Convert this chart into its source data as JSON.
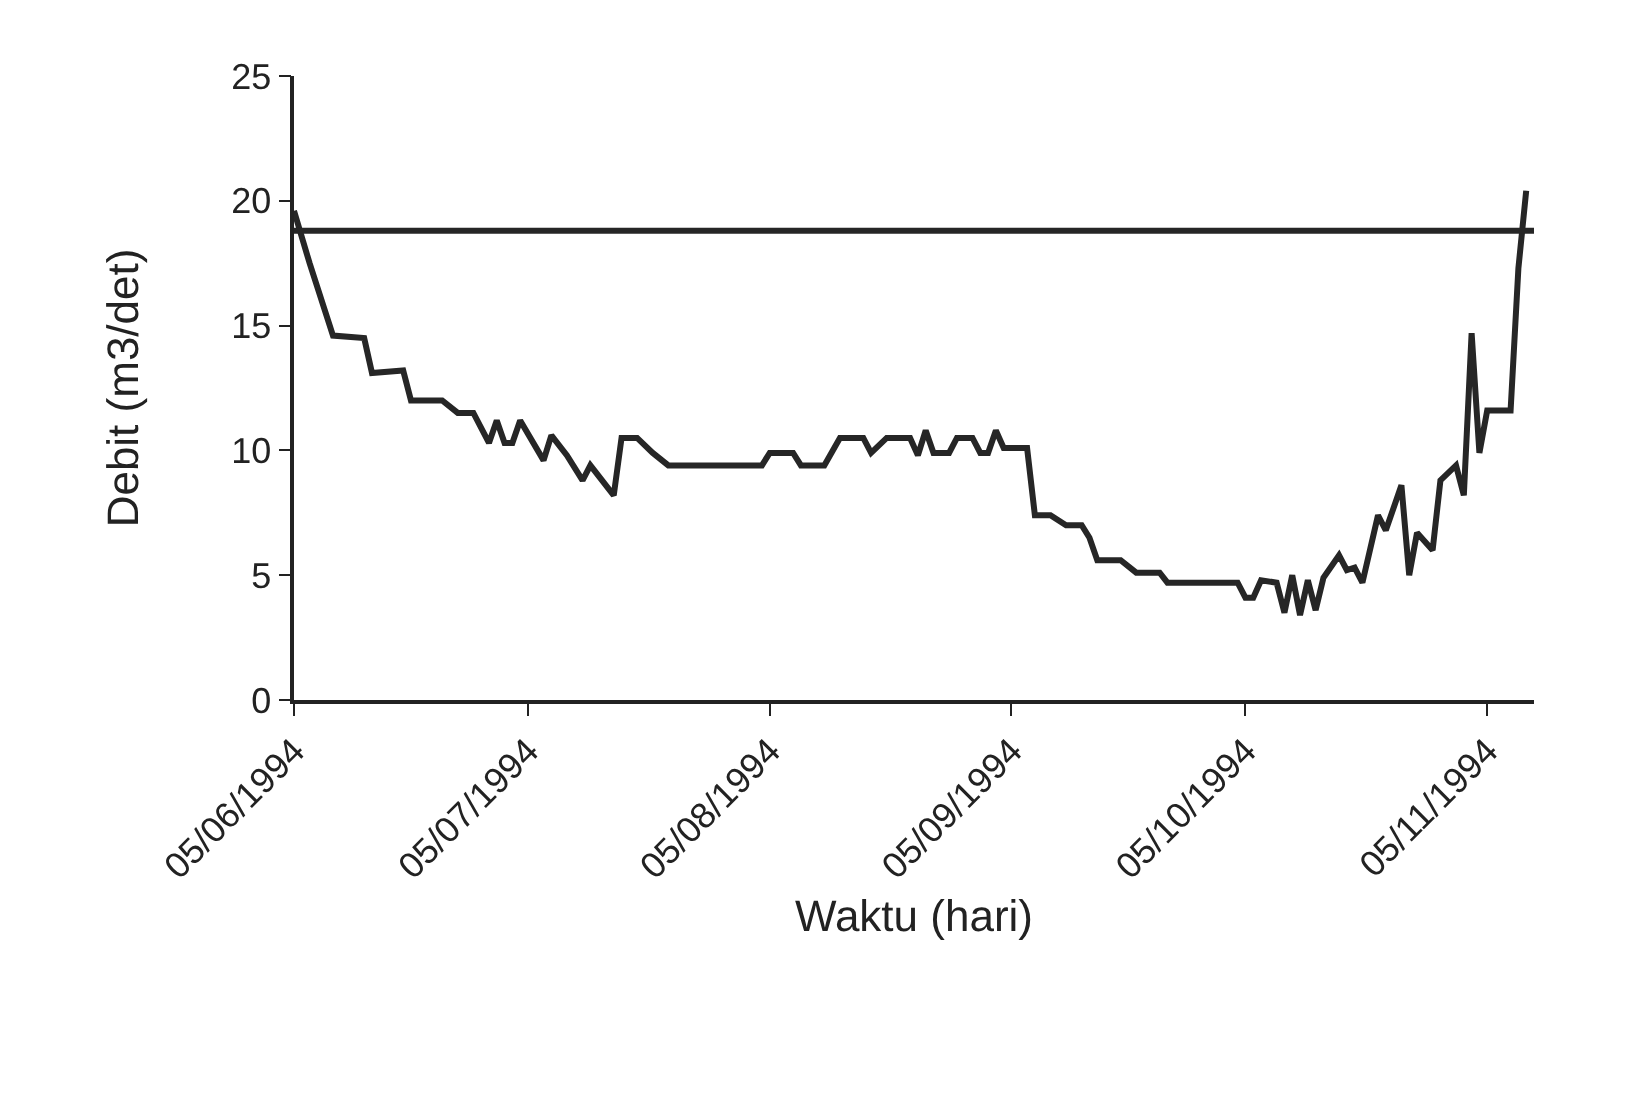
{
  "chart_data": {
    "type": "line",
    "xlabel": "Waktu (hari)",
    "ylabel": "Debit (m3/det)",
    "x": [
      "1994-06-05",
      "1994-06-07",
      "1994-06-10",
      "1994-06-14",
      "1994-06-15",
      "1994-06-19",
      "1994-06-20",
      "1994-06-24",
      "1994-06-26",
      "1994-06-28",
      "1994-06-30",
      "1994-07-01",
      "1994-07-02",
      "1994-07-03",
      "1994-07-04",
      "1994-07-07",
      "1994-07-08",
      "1994-07-10",
      "1994-07-12",
      "1994-07-13",
      "1994-07-16",
      "1994-07-17",
      "1994-07-19",
      "1994-07-21",
      "1994-07-23",
      "1994-08-04",
      "1994-08-05",
      "1994-08-08",
      "1994-08-09",
      "1994-08-12",
      "1994-08-14",
      "1994-08-17",
      "1994-08-18",
      "1994-08-20",
      "1994-08-23",
      "1994-08-24",
      "1994-08-25",
      "1994-08-26",
      "1994-08-28",
      "1994-08-29",
      "1994-08-31",
      "1994-09-01",
      "1994-09-02",
      "1994-09-03",
      "1994-09-04",
      "1994-09-07",
      "1994-09-08",
      "1994-09-10",
      "1994-09-12",
      "1994-09-14",
      "1994-09-15",
      "1994-09-16",
      "1994-09-19",
      "1994-09-21",
      "1994-09-24",
      "1994-09-25",
      "1994-10-04",
      "1994-10-05",
      "1994-10-06",
      "1994-10-07",
      "1994-10-09",
      "1994-10-10",
      "1994-10-11",
      "1994-10-12",
      "1994-10-13",
      "1994-10-14",
      "1994-10-15",
      "1994-10-17",
      "1994-10-18",
      "1994-10-19",
      "1994-10-20",
      "1994-10-22",
      "1994-10-23",
      "1994-10-25",
      "1994-10-26",
      "1994-10-27",
      "1994-10-29",
      "1994-10-30",
      "1994-11-01",
      "1994-11-02",
      "1994-11-03",
      "1994-11-04",
      "1994-11-05",
      "1994-11-08",
      "1994-11-09",
      "1994-11-10"
    ],
    "series": [
      {
        "color": "#262626",
        "values": [
          19.6,
          17.5,
          14.6,
          14.5,
          13.1,
          13.2,
          12.0,
          12.0,
          11.5,
          11.5,
          10.3,
          11.2,
          10.3,
          10.3,
          11.2,
          9.6,
          10.6,
          9.8,
          8.8,
          9.4,
          8.2,
          10.5,
          10.5,
          9.9,
          9.4,
          9.4,
          9.9,
          9.9,
          9.4,
          9.4,
          10.5,
          10.5,
          9.9,
          10.5,
          10.5,
          9.8,
          10.8,
          9.9,
          9.9,
          10.5,
          10.5,
          9.9,
          9.9,
          10.8,
          10.1,
          10.1,
          7.4,
          7.4,
          7.0,
          7.0,
          6.5,
          5.6,
          5.6,
          5.1,
          5.1,
          4.7,
          4.7,
          4.1,
          4.1,
          4.8,
          4.7,
          3.5,
          5.0,
          3.4,
          4.8,
          3.6,
          4.9,
          5.8,
          5.2,
          5.3,
          4.7,
          7.4,
          6.8,
          8.6,
          5.0,
          6.7,
          6.0,
          8.8,
          9.4,
          8.2,
          14.7,
          9.9,
          11.6,
          11.6,
          17.3,
          20.4
        ]
      }
    ],
    "ref_lines": [
      {
        "axis": "y",
        "value": 18.8,
        "color": "#262626",
        "line_style": "solid"
      }
    ],
    "xlim": [
      "1994-06-05",
      "1994-11-11"
    ],
    "xticks": [
      {
        "value": "1994-06-05",
        "label": "05/06/1994"
      },
      {
        "value": "1994-07-05",
        "label": "05/07/1994"
      },
      {
        "value": "1994-08-05",
        "label": "05/08/1994"
      },
      {
        "value": "1994-09-05",
        "label": "05/09/1994"
      },
      {
        "value": "1994-10-05",
        "label": "05/10/1994"
      },
      {
        "value": "1994-11-05",
        "label": "05/11/1994"
      }
    ],
    "ylim": [
      0,
      25
    ],
    "yticks": [
      0,
      5,
      10,
      15,
      20,
      25
    ],
    "marker": "none",
    "line_style": "solid"
  }
}
